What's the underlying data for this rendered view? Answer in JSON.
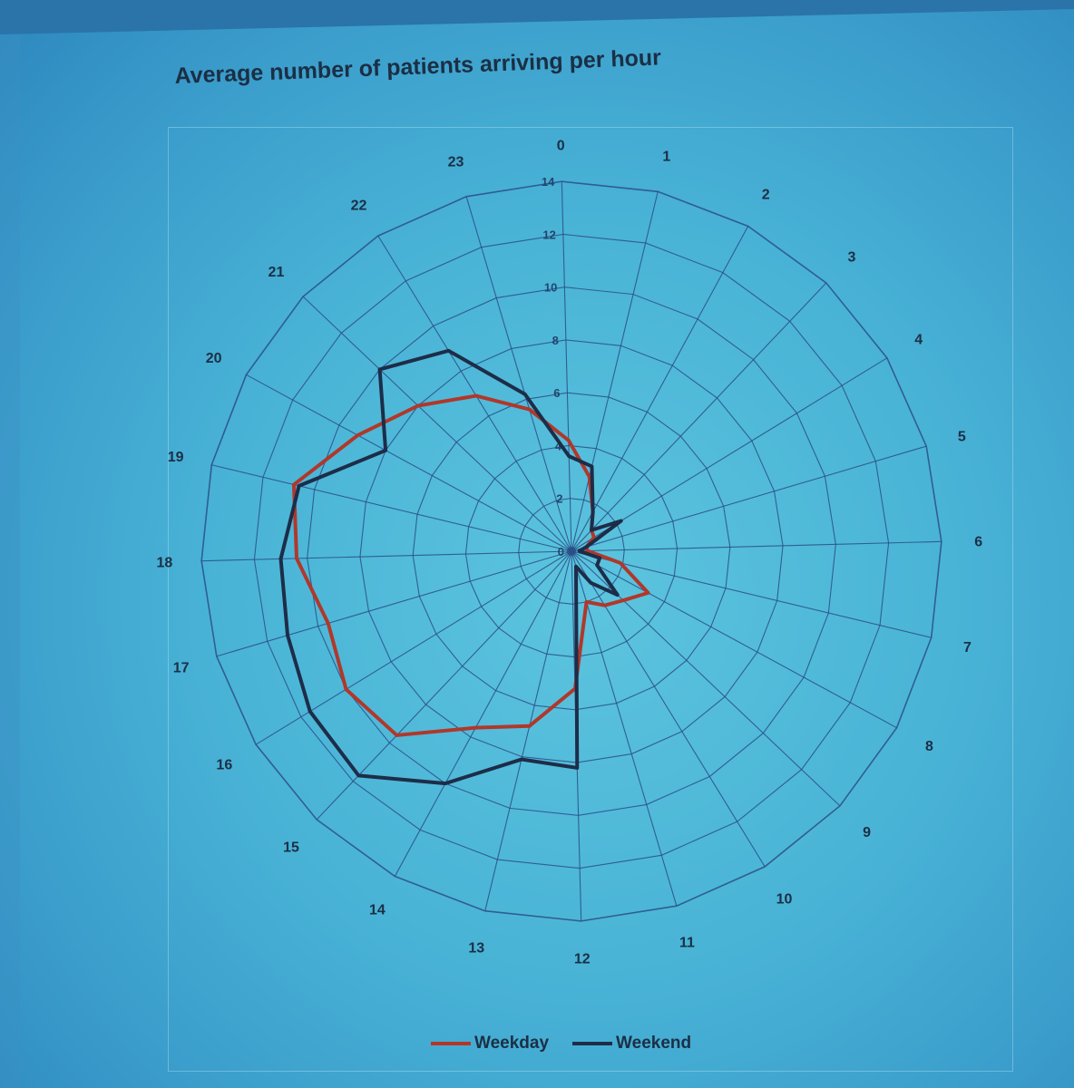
{
  "chart_data": {
    "type": "radar",
    "title": "Average number of patients arriving per hour",
    "categories": [
      "0",
      "1",
      "2",
      "3",
      "4",
      "5",
      "6",
      "7",
      "8",
      "9",
      "10",
      "11",
      "12",
      "13",
      "14",
      "15",
      "16",
      "17",
      "18",
      "19",
      "20",
      "21",
      "22",
      "23"
    ],
    "rlim": [
      0,
      14
    ],
    "r_ticks": [
      "0",
      "2",
      "4",
      "6",
      "8",
      "10",
      "12",
      "14"
    ],
    "grid": true,
    "legend_position": "bottom",
    "series": [
      {
        "name": "Weekday",
        "color": "#b0382b",
        "values": [
          4.2,
          2.9,
          1.7,
          1.1,
          1.0,
          0.6,
          0.6,
          1.9,
          3.3,
          2.7,
          2.4,
          2.0,
          5.2,
          6.8,
          7.6,
          9.6,
          10.0,
          9.6,
          10.4,
          10.8,
          9.2,
          8.0,
          6.9,
          5.6
        ]
      },
      {
        "name": "Weekend",
        "color": "#1d2d48",
        "values": [
          3.6,
          3.3,
          1.7,
          1.1,
          2.2,
          0.6,
          0.3,
          1.1,
          1.1,
          2.4,
          1.4,
          0.6,
          8.2,
          8.1,
          10.0,
          11.7,
          11.6,
          11.2,
          11.0,
          10.6,
          8.0,
          10.0,
          8.9,
          6.2
        ]
      }
    ]
  }
}
